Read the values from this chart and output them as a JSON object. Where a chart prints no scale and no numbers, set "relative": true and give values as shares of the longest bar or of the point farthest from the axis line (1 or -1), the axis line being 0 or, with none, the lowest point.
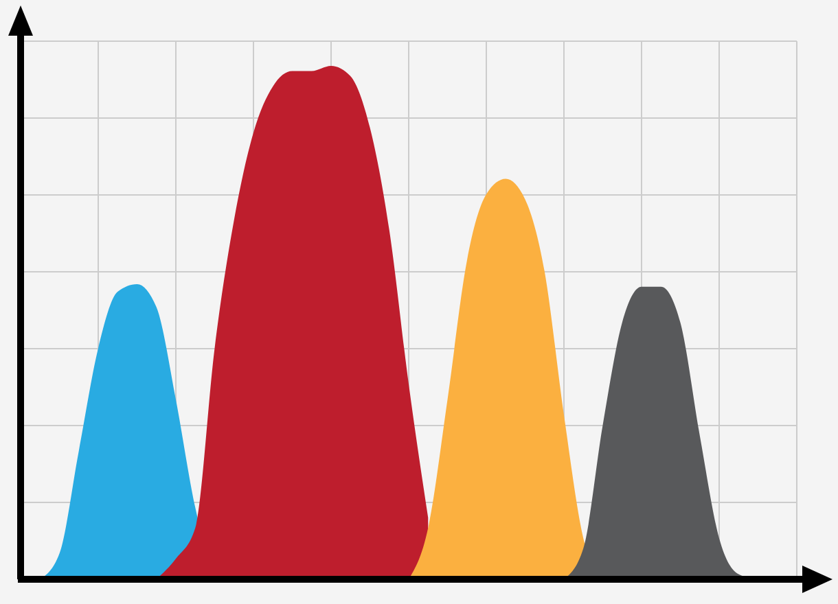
{
  "chart_data": {
    "type": "area",
    "relative": true,
    "grid": true,
    "categories": [
      null,
      null,
      null,
      null,
      null,
      null,
      null,
      null,
      null,
      null,
      null,
      null,
      null,
      null,
      null,
      null,
      null,
      null,
      null,
      null,
      null,
      null,
      null,
      null,
      null,
      null,
      null,
      null,
      null,
      null,
      null,
      null,
      null,
      null,
      null,
      null,
      null,
      null,
      null,
      null,
      null
    ],
    "series": [
      {
        "color": "#29abe2",
        "values": [
          null,
          0,
          0.05,
          0.25,
          0.45,
          0.56,
          0.575,
          0.53,
          0.35,
          0.14,
          0,
          null,
          null,
          null,
          null,
          null,
          null,
          null,
          null,
          null,
          null,
          null,
          null,
          null,
          null,
          null,
          null,
          null,
          null,
          null,
          null,
          null,
          null,
          null,
          null,
          null,
          null,
          null,
          null,
          null,
          null
        ]
      },
      {
        "color": "#be1e2d",
        "values": [
          null,
          null,
          null,
          null,
          null,
          null,
          null,
          0,
          0.04,
          0.1,
          0.45,
          0.7,
          0.87,
          0.96,
          0.99,
          0.99,
          1,
          0.98,
          0.88,
          0.68,
          0.38,
          0.12,
          null,
          null,
          null,
          null,
          null,
          null,
          null,
          null,
          null,
          null,
          null,
          null,
          null,
          null,
          null,
          null,
          null,
          null,
          null
        ]
      },
      {
        "color": "#fbb040",
        "values": [
          null,
          null,
          null,
          null,
          null,
          null,
          null,
          null,
          null,
          null,
          null,
          null,
          null,
          null,
          null,
          null,
          null,
          null,
          null,
          null,
          0,
          0.1,
          0.35,
          0.62,
          0.75,
          0.78,
          0.74,
          0.6,
          0.32,
          0.08,
          0,
          null,
          null,
          null,
          null,
          null,
          null,
          null,
          null,
          null,
          null
        ]
      },
      {
        "color": "#58595b",
        "values": [
          null,
          null,
          null,
          null,
          null,
          null,
          null,
          null,
          null,
          null,
          null,
          null,
          null,
          null,
          null,
          null,
          null,
          null,
          null,
          null,
          null,
          null,
          null,
          null,
          null,
          null,
          null,
          null,
          0,
          0.06,
          0.3,
          0.5,
          0.57,
          0.57,
          0.5,
          0.28,
          0.08,
          0.01,
          0,
          null,
          null
        ]
      }
    ]
  }
}
